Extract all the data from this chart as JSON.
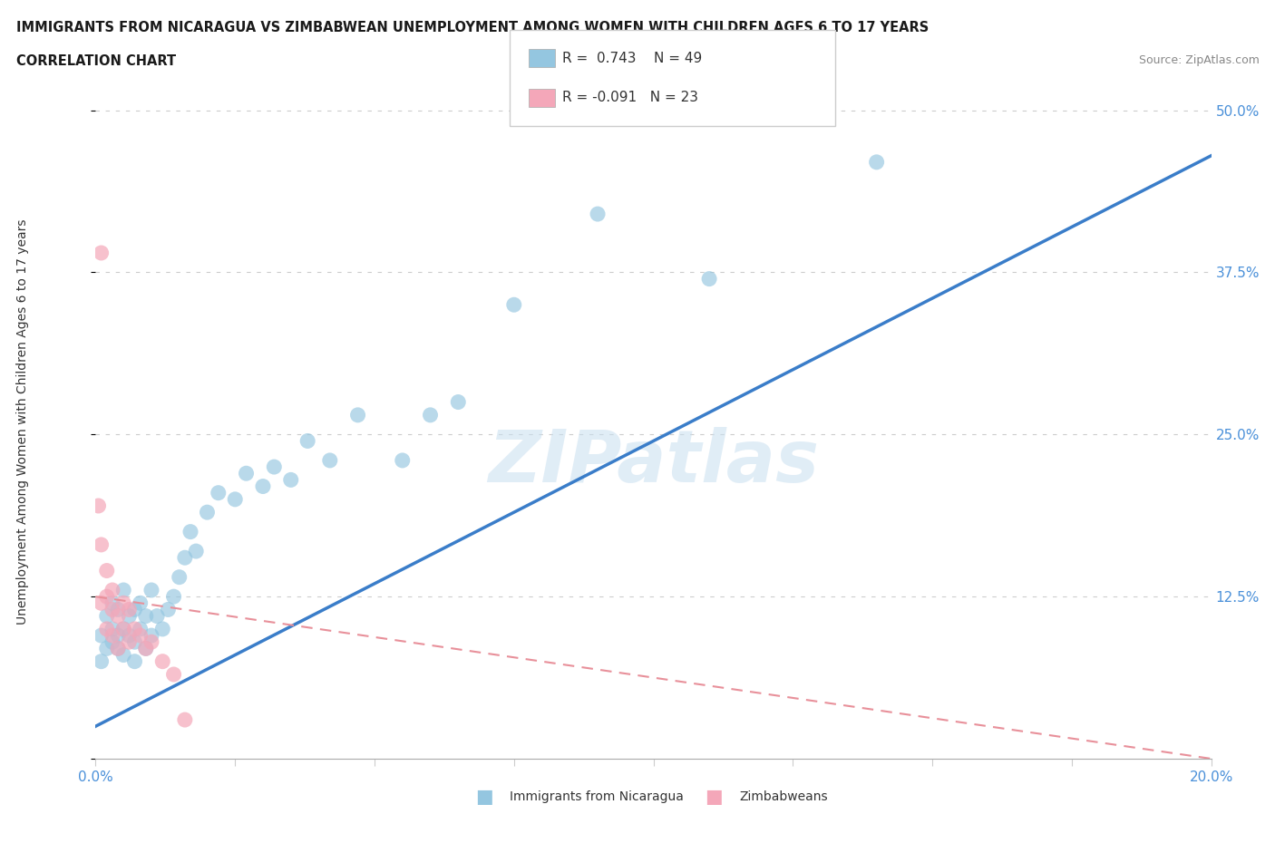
{
  "title_line1": "IMMIGRANTS FROM NICARAGUA VS ZIMBABWEAN UNEMPLOYMENT AMONG WOMEN WITH CHILDREN AGES 6 TO 17 YEARS",
  "title_line2": "CORRELATION CHART",
  "source_text": "Source: ZipAtlas.com",
  "ylabel": "Unemployment Among Women with Children Ages 6 to 17 years",
  "xlim": [
    0.0,
    0.2
  ],
  "ylim": [
    0.0,
    0.52
  ],
  "yticks": [
    0.0,
    0.125,
    0.25,
    0.375,
    0.5
  ],
  "ytick_labels": [
    "",
    "12.5%",
    "25.0%",
    "37.5%",
    "50.0%"
  ],
  "xticks": [
    0.0,
    0.025,
    0.05,
    0.075,
    0.1,
    0.125,
    0.15,
    0.175,
    0.2
  ],
  "xtick_labels": [
    "0.0%",
    "",
    "",
    "",
    "",
    "",
    "",
    "",
    "20.0%"
  ],
  "blue_color": "#94C6E0",
  "pink_color": "#F4A7B9",
  "trend_blue": "#3A7DC9",
  "trend_pink": "#E8909A",
  "watermark_color": "#C8DFF0",
  "legend_r_blue": "R =  0.743",
  "legend_n_blue": "N = 49",
  "legend_r_pink": "R = -0.091",
  "legend_n_pink": "N = 23",
  "blue_scatter_x": [
    0.001,
    0.001,
    0.002,
    0.002,
    0.003,
    0.003,
    0.003,
    0.004,
    0.004,
    0.004,
    0.005,
    0.005,
    0.005,
    0.006,
    0.006,
    0.007,
    0.007,
    0.007,
    0.008,
    0.008,
    0.009,
    0.009,
    0.01,
    0.01,
    0.011,
    0.012,
    0.013,
    0.014,
    0.015,
    0.016,
    0.017,
    0.018,
    0.02,
    0.022,
    0.025,
    0.027,
    0.03,
    0.032,
    0.035,
    0.038,
    0.042,
    0.047,
    0.055,
    0.06,
    0.065,
    0.075,
    0.09,
    0.11,
    0.14
  ],
  "blue_scatter_y": [
    0.095,
    0.075,
    0.085,
    0.11,
    0.1,
    0.12,
    0.09,
    0.095,
    0.115,
    0.085,
    0.1,
    0.13,
    0.08,
    0.095,
    0.11,
    0.09,
    0.115,
    0.075,
    0.1,
    0.12,
    0.085,
    0.11,
    0.095,
    0.13,
    0.11,
    0.1,
    0.115,
    0.125,
    0.14,
    0.155,
    0.175,
    0.16,
    0.19,
    0.205,
    0.2,
    0.22,
    0.21,
    0.225,
    0.215,
    0.245,
    0.23,
    0.265,
    0.23,
    0.265,
    0.275,
    0.35,
    0.42,
    0.37,
    0.46
  ],
  "pink_scatter_x": [
    0.0005,
    0.001,
    0.001,
    0.001,
    0.002,
    0.002,
    0.002,
    0.003,
    0.003,
    0.003,
    0.004,
    0.004,
    0.005,
    0.005,
    0.006,
    0.006,
    0.007,
    0.008,
    0.009,
    0.01,
    0.012,
    0.014,
    0.016
  ],
  "pink_scatter_y": [
    0.195,
    0.39,
    0.165,
    0.12,
    0.145,
    0.125,
    0.1,
    0.115,
    0.095,
    0.13,
    0.11,
    0.085,
    0.12,
    0.1,
    0.115,
    0.09,
    0.1,
    0.095,
    0.085,
    0.09,
    0.075,
    0.065,
    0.03
  ],
  "blue_trend_x0": 0.0,
  "blue_trend_y0": 0.025,
  "blue_trend_x1": 0.2,
  "blue_trend_y1": 0.465,
  "pink_trend_x0": 0.0,
  "pink_trend_y0": 0.125,
  "pink_trend_x1": 0.2,
  "pink_trend_y1": 0.0
}
